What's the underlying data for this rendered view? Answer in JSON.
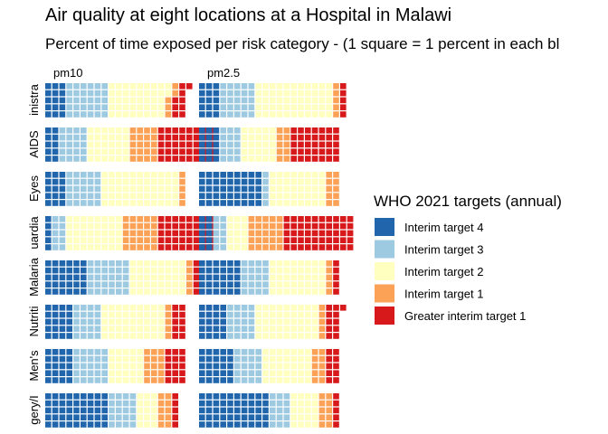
{
  "chart_data": {
    "type": "waffle",
    "title": "Air quality at eight locations at a Hospital in Malawi",
    "subtitle": "Percent of time exposed per risk category - (1 square = 1 percent in each bl",
    "unit": "percent of time",
    "columns": [
      "pm10",
      "pm2.5"
    ],
    "rows": [
      "inistra",
      "AIDS",
      "Eyes",
      "uardia",
      "Malaria",
      "Nutriti",
      "Men's",
      "gery/I"
    ],
    "legend": {
      "title": "WHO 2021 targets (annual)",
      "placement": "right",
      "entries": [
        {
          "label": "Interim target 4",
          "color": "#2166ac"
        },
        {
          "label": "Interim target 3",
          "color": "#9ecae1"
        },
        {
          "label": "Interim target 2",
          "color": "#ffffc0"
        },
        {
          "label": "Interim target 1",
          "color": "#fba257"
        },
        {
          "label": "Greater interim target 1",
          "color": "#d7191c"
        }
      ]
    },
    "values": {
      "pm10": [
        [
          15,
          30,
          42,
          5,
          9
        ],
        [
          10,
          20,
          30,
          20,
          40
        ],
        [
          15,
          25,
          55,
          5,
          0
        ],
        [
          5,
          10,
          40,
          25,
          40
        ],
        [
          30,
          30,
          40,
          5,
          5
        ],
        [
          20,
          20,
          45,
          5,
          10
        ],
        [
          20,
          25,
          25,
          15,
          15
        ],
        [
          45,
          20,
          15,
          10,
          5
        ]
      ],
      "pm2.5": [
        [
          15,
          25,
          55,
          5,
          5
        ],
        [
          15,
          15,
          25,
          10,
          35
        ],
        [
          45,
          5,
          40,
          10,
          0
        ],
        [
          10,
          10,
          15,
          25,
          50
        ],
        [
          30,
          20,
          40,
          5,
          5
        ],
        [
          20,
          20,
          45,
          5,
          11
        ],
        [
          25,
          20,
          35,
          10,
          10
        ],
        [
          50,
          15,
          20,
          10,
          5
        ]
      ]
    }
  }
}
